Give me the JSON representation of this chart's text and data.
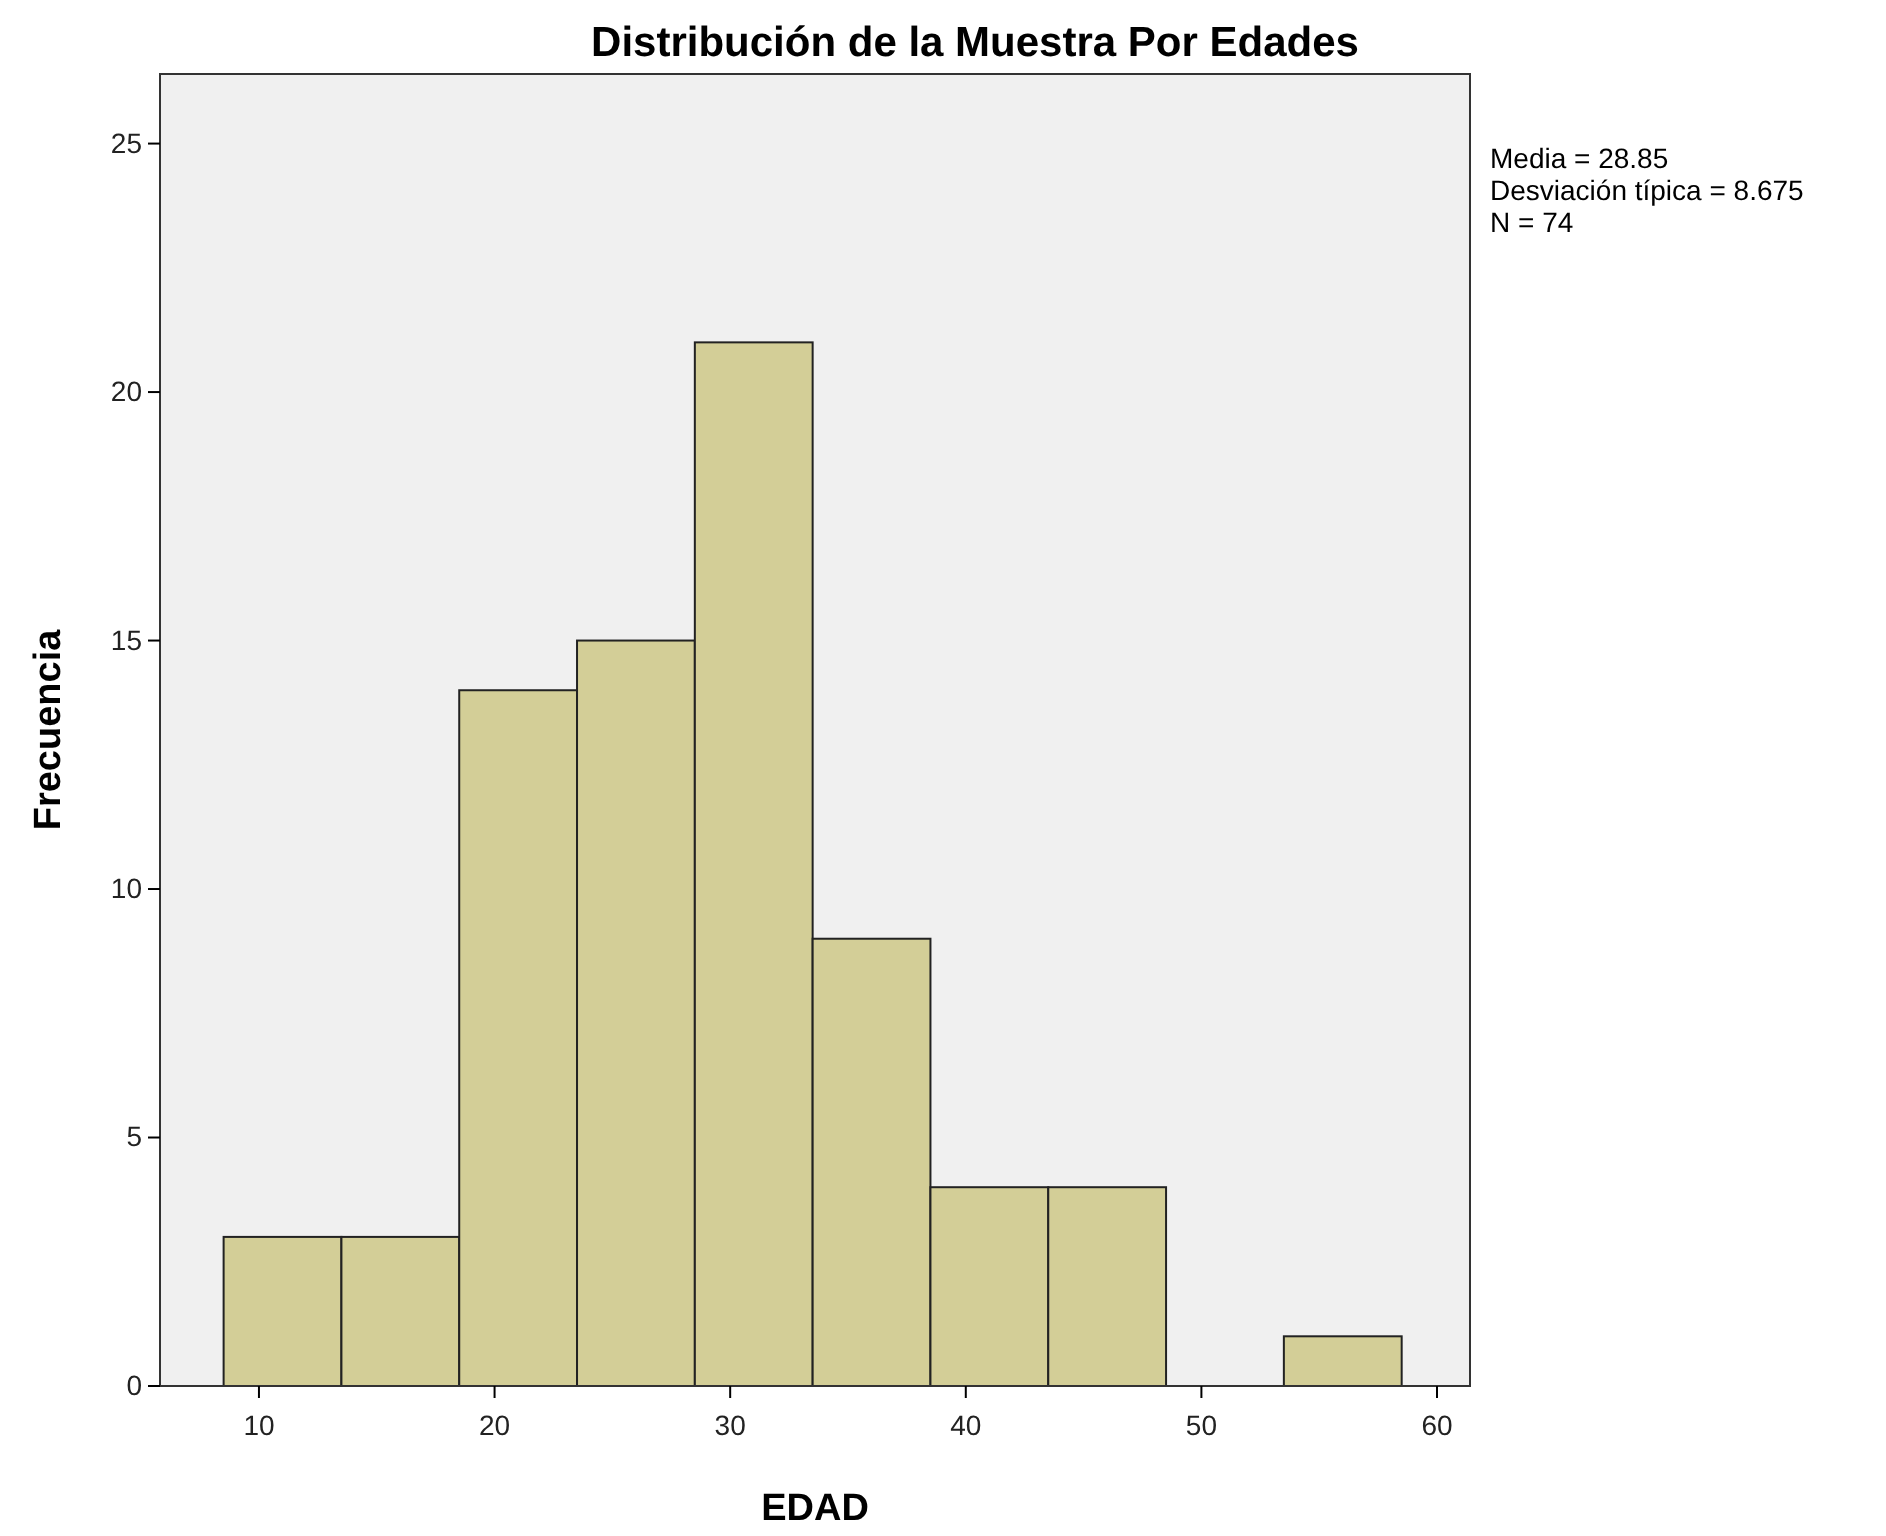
{
  "chart_data": {
    "type": "histogram",
    "title": "Distribución de la Muestra Por Edades",
    "xlabel": "EDAD",
    "ylabel": "Frecuencia",
    "bins": [
      8.5,
      13.5,
      18.5,
      23.5,
      28.5,
      33.5,
      38.5,
      43.5,
      48.5,
      53.5,
      58.5
    ],
    "values": [
      3,
      3,
      14,
      15,
      21,
      9,
      4,
      4,
      0,
      1
    ],
    "color": "#d3ce97",
    "xlim": [
      5.8,
      61.4
    ],
    "xticks": [
      10,
      20,
      30,
      40,
      50,
      60
    ],
    "ylim": [
      0,
      26.4
    ],
    "yticks": [
      0,
      5,
      10,
      15,
      20,
      25
    ],
    "grid": false,
    "annotations": [
      "Media = 28.85",
      "Desviación típica = 8.675",
      "N = 74"
    ]
  }
}
